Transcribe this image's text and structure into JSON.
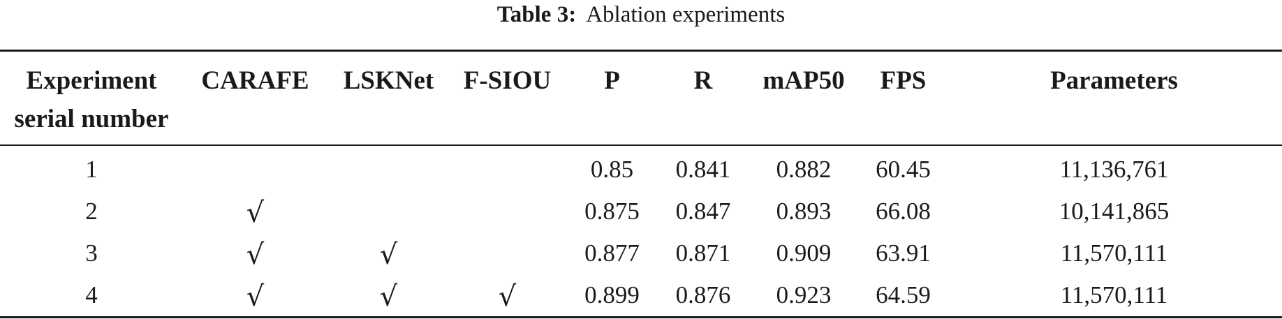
{
  "caption": {
    "label": "Table 3:",
    "text": "Ablation experiments"
  },
  "table": {
    "headers": [
      [
        "Experiment",
        "serial number"
      ],
      [
        "CARAFE"
      ],
      [
        "LSKNet"
      ],
      [
        "F-SIOU"
      ],
      [
        "P"
      ],
      [
        "R"
      ],
      [
        "mAP50"
      ],
      [
        "FPS"
      ],
      [
        "Parameters"
      ]
    ],
    "rows": [
      [
        "1",
        "",
        "",
        "",
        "0.85",
        "0.841",
        "0.882",
        "60.45",
        "11,136,761"
      ],
      [
        "2",
        "√",
        "",
        "",
        "0.875",
        "0.847",
        "0.893",
        "66.08",
        "10,141,865"
      ],
      [
        "3",
        "√",
        "√",
        "",
        "0.877",
        "0.871",
        "0.909",
        "63.91",
        "11,570,111"
      ],
      [
        "4",
        "√",
        "√",
        "√",
        "0.899",
        "0.876",
        "0.923",
        "64.59",
        "11,570,111"
      ]
    ]
  }
}
